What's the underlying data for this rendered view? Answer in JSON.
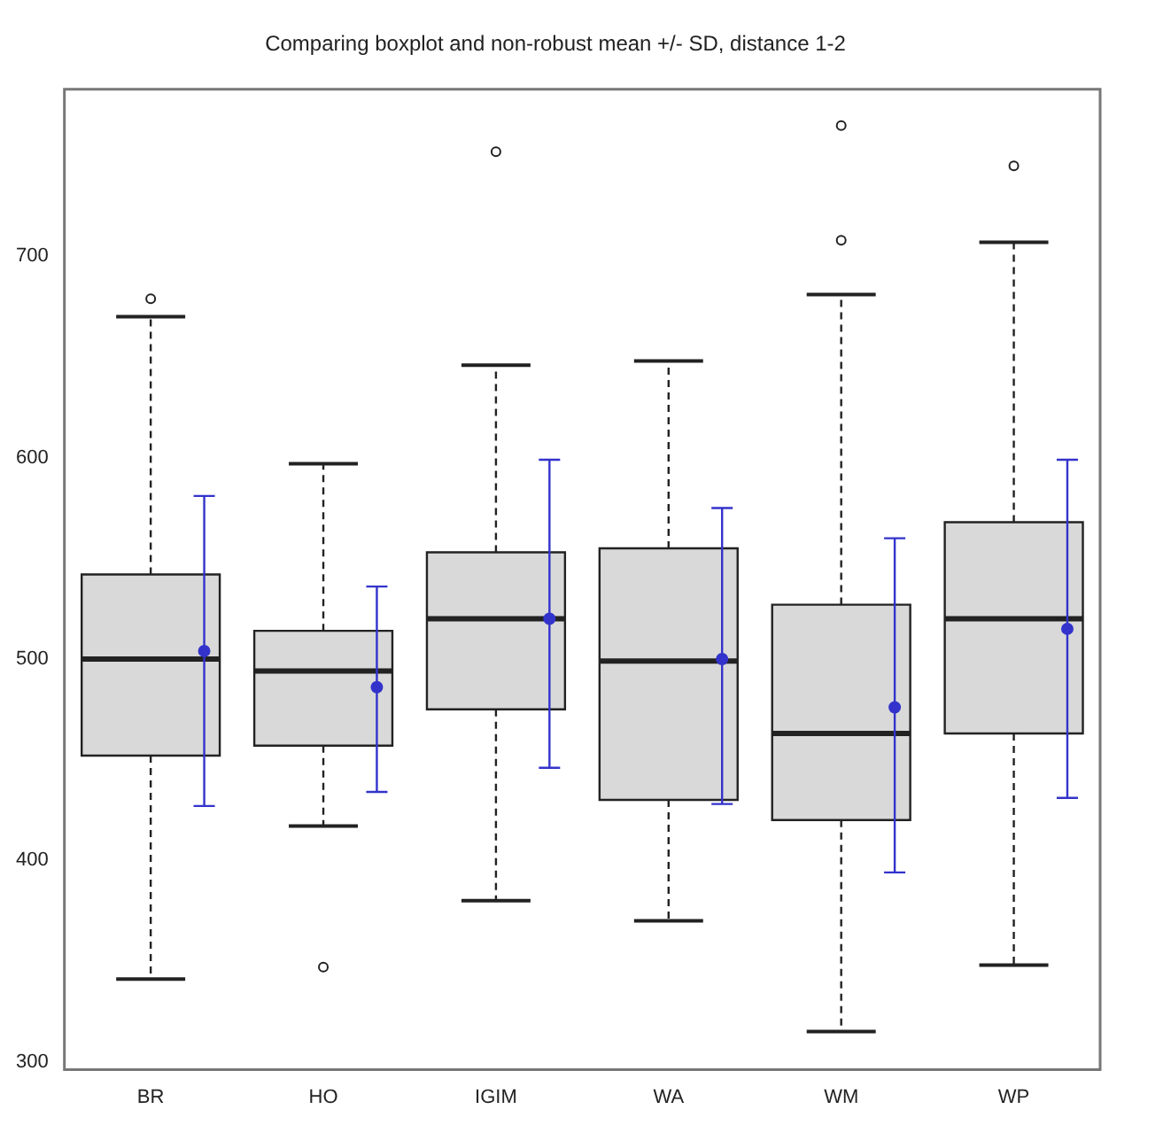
{
  "chart_data": {
    "type": "box",
    "title": "Comparing boxplot and non-robust mean +/- SD, distance 1-2",
    "categories": [
      "BR",
      "HO",
      "IGIM",
      "WA",
      "WM",
      "WP"
    ],
    "ylim": [
      296,
      783
    ],
    "yticks": [
      300,
      400,
      500,
      600,
      700
    ],
    "grid": false,
    "legend": false,
    "series": [
      {
        "color": "#d9d9d9",
        "boxes": [
          {
            "low": 341,
            "q1": 452,
            "median": 500,
            "q3": 542,
            "high": 670,
            "outliers": [
              679
            ]
          },
          {
            "low": 417,
            "q1": 457,
            "median": 494,
            "q3": 514,
            "high": 597,
            "outliers": [
              347
            ]
          },
          {
            "low": 380,
            "q1": 475,
            "median": 520,
            "q3": 553,
            "high": 646,
            "outliers": [
              752
            ]
          },
          {
            "low": 370,
            "q1": 430,
            "median": 499,
            "q3": 555,
            "high": 648
          },
          {
            "low": 315,
            "q1": 420,
            "median": 463,
            "q3": 527,
            "high": 681,
            "outliers": [
              708,
              765
            ]
          },
          {
            "low": 348,
            "q1": 463,
            "median": 520,
            "q3": 568,
            "high": 707,
            "outliers": [
              745
            ]
          }
        ]
      },
      {
        "type": "scatter",
        "color": "#3333cc",
        "x": [
          "BR",
          "HO",
          "IGIM",
          "WA",
          "WM",
          "WP"
        ],
        "values": [
          504,
          486,
          520,
          500,
          476,
          515
        ],
        "errors": [
          [
            427,
            581
          ],
          [
            434,
            536
          ],
          [
            446,
            599
          ],
          [
            428,
            575
          ],
          [
            394,
            560
          ],
          [
            431,
            599
          ]
        ]
      }
    ]
  }
}
